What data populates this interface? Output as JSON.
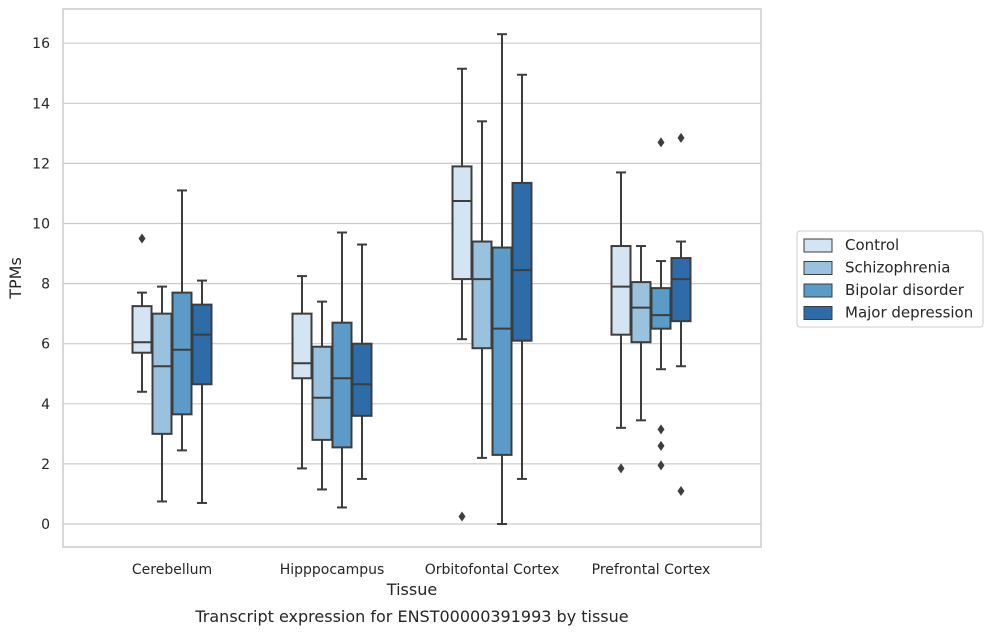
{
  "chart_data": {
    "type": "box",
    "title": "Transcript expression for ENST00000391993 by tissue",
    "xlabel": "Tissue",
    "ylabel": "TPMs",
    "ylim": [
      -0.8,
      17.1
    ],
    "yticks": [
      0,
      2,
      4,
      6,
      8,
      10,
      12,
      14,
      16
    ],
    "grid": "horizontal",
    "legend_position": "right",
    "categories": [
      "Cerebellum",
      "Hipppocampus",
      "Orbitofontal Cortex",
      "Prefrontal Cortex"
    ],
    "series": [
      {
        "name": "Control",
        "color": "#d4e4f2",
        "boxes": [
          {
            "q1": 5.7,
            "median": 6.05,
            "q3": 7.25,
            "whisker_low": 4.4,
            "whisker_high": 7.7,
            "outliers": [
              9.5
            ]
          },
          {
            "q1": 4.85,
            "median": 5.35,
            "q3": 7.0,
            "whisker_low": 1.85,
            "whisker_high": 8.25,
            "outliers": []
          },
          {
            "q1": 8.15,
            "median": 10.75,
            "q3": 11.9,
            "whisker_low": 6.15,
            "whisker_high": 15.15,
            "outliers": [
              0.25
            ]
          },
          {
            "q1": 6.3,
            "median": 7.9,
            "q3": 9.25,
            "whisker_low": 3.2,
            "whisker_high": 11.7,
            "outliers": [
              1.85
            ]
          }
        ]
      },
      {
        "name": "Schizophrenia",
        "color": "#9ac2de",
        "boxes": [
          {
            "q1": 3.0,
            "median": 5.25,
            "q3": 7.0,
            "whisker_low": 0.75,
            "whisker_high": 7.9,
            "outliers": []
          },
          {
            "q1": 2.8,
            "median": 4.2,
            "q3": 5.9,
            "whisker_low": 1.15,
            "whisker_high": 7.4,
            "outliers": []
          },
          {
            "q1": 5.85,
            "median": 8.15,
            "q3": 9.4,
            "whisker_low": 2.2,
            "whisker_high": 13.4,
            "outliers": []
          },
          {
            "q1": 6.05,
            "median": 7.2,
            "q3": 8.05,
            "whisker_low": 3.45,
            "whisker_high": 9.25,
            "outliers": []
          }
        ]
      },
      {
        "name": "Bipolar disorder",
        "color": "#5a9bc8",
        "boxes": [
          {
            "q1": 3.65,
            "median": 5.8,
            "q3": 7.7,
            "whisker_low": 2.45,
            "whisker_high": 11.1,
            "outliers": []
          },
          {
            "q1": 2.55,
            "median": 4.85,
            "q3": 6.7,
            "whisker_low": 0.55,
            "whisker_high": 9.7,
            "outliers": []
          },
          {
            "q1": 2.3,
            "median": 6.5,
            "q3": 9.2,
            "whisker_low": 0.0,
            "whisker_high": 16.3,
            "outliers": []
          },
          {
            "q1": 6.5,
            "median": 6.95,
            "q3": 7.85,
            "whisker_low": 5.15,
            "whisker_high": 8.75,
            "outliers": [
              12.7,
              3.15,
              2.6,
              1.95
            ]
          }
        ]
      },
      {
        "name": "Major depression",
        "color": "#2e6ca9",
        "boxes": [
          {
            "q1": 4.65,
            "median": 6.3,
            "q3": 7.3,
            "whisker_low": 0.7,
            "whisker_high": 8.1,
            "outliers": []
          },
          {
            "q1": 3.6,
            "median": 4.65,
            "q3": 6.0,
            "whisker_low": 1.5,
            "whisker_high": 9.3,
            "outliers": []
          },
          {
            "q1": 6.1,
            "median": 8.45,
            "q3": 11.35,
            "whisker_low": 1.5,
            "whisker_high": 14.95,
            "outliers": []
          },
          {
            "q1": 6.75,
            "median": 8.15,
            "q3": 8.85,
            "whisker_low": 5.25,
            "whisker_high": 9.4,
            "outliers": [
              12.85,
              1.1
            ]
          }
        ]
      }
    ]
  }
}
